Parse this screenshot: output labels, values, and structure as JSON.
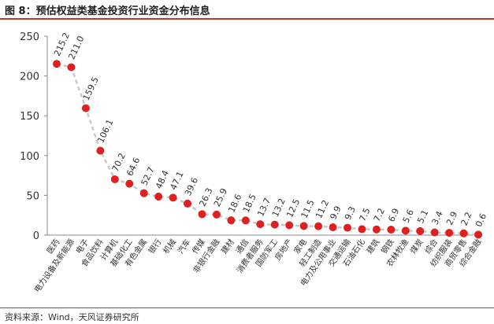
{
  "header": {
    "title": "图 8：预估权益类基金投资行业资金分布信息"
  },
  "footer": {
    "source": "资料来源：Wind，天风证券研究所"
  },
  "colors": {
    "accent": "#c0392b",
    "point": "#e02020",
    "line": "#c8c8c8"
  },
  "chart_data": {
    "type": "line",
    "title": "",
    "xlabel": "",
    "ylabel": "",
    "ylim": [
      0,
      250
    ],
    "yticks": [
      0,
      50,
      100,
      150,
      200,
      250
    ],
    "grid": false,
    "legend": "none",
    "line_style": "dashed",
    "categories": [
      "医药",
      "电力设备及新能源",
      "电子",
      "食品饮料",
      "计算机",
      "基础化工",
      "有色金属",
      "银行",
      "机械",
      "汽车",
      "传媒",
      "非银行金融",
      "建材",
      "通信",
      "消费者服务",
      "国防军工",
      "房地产",
      "家电",
      "轻工制造",
      "电力及公用事业",
      "交通运输",
      "石油石化",
      "建筑",
      "钢铁",
      "农林牧渔",
      "煤炭",
      "综合",
      "纺织服装",
      "商贸零售",
      "综合金融"
    ],
    "series": [
      {
        "values": [
          215.2,
          211.0,
          159.5,
          106.1,
          70.2,
          64.6,
          52.7,
          48.4,
          47.1,
          39.6,
          26.3,
          25.9,
          18.6,
          18.5,
          13.7,
          13.2,
          12.5,
          11.5,
          11.2,
          9.9,
          9.3,
          7.5,
          7.2,
          6.9,
          5.6,
          5.1,
          3.4,
          2.9,
          2.2,
          0.6
        ]
      }
    ]
  }
}
